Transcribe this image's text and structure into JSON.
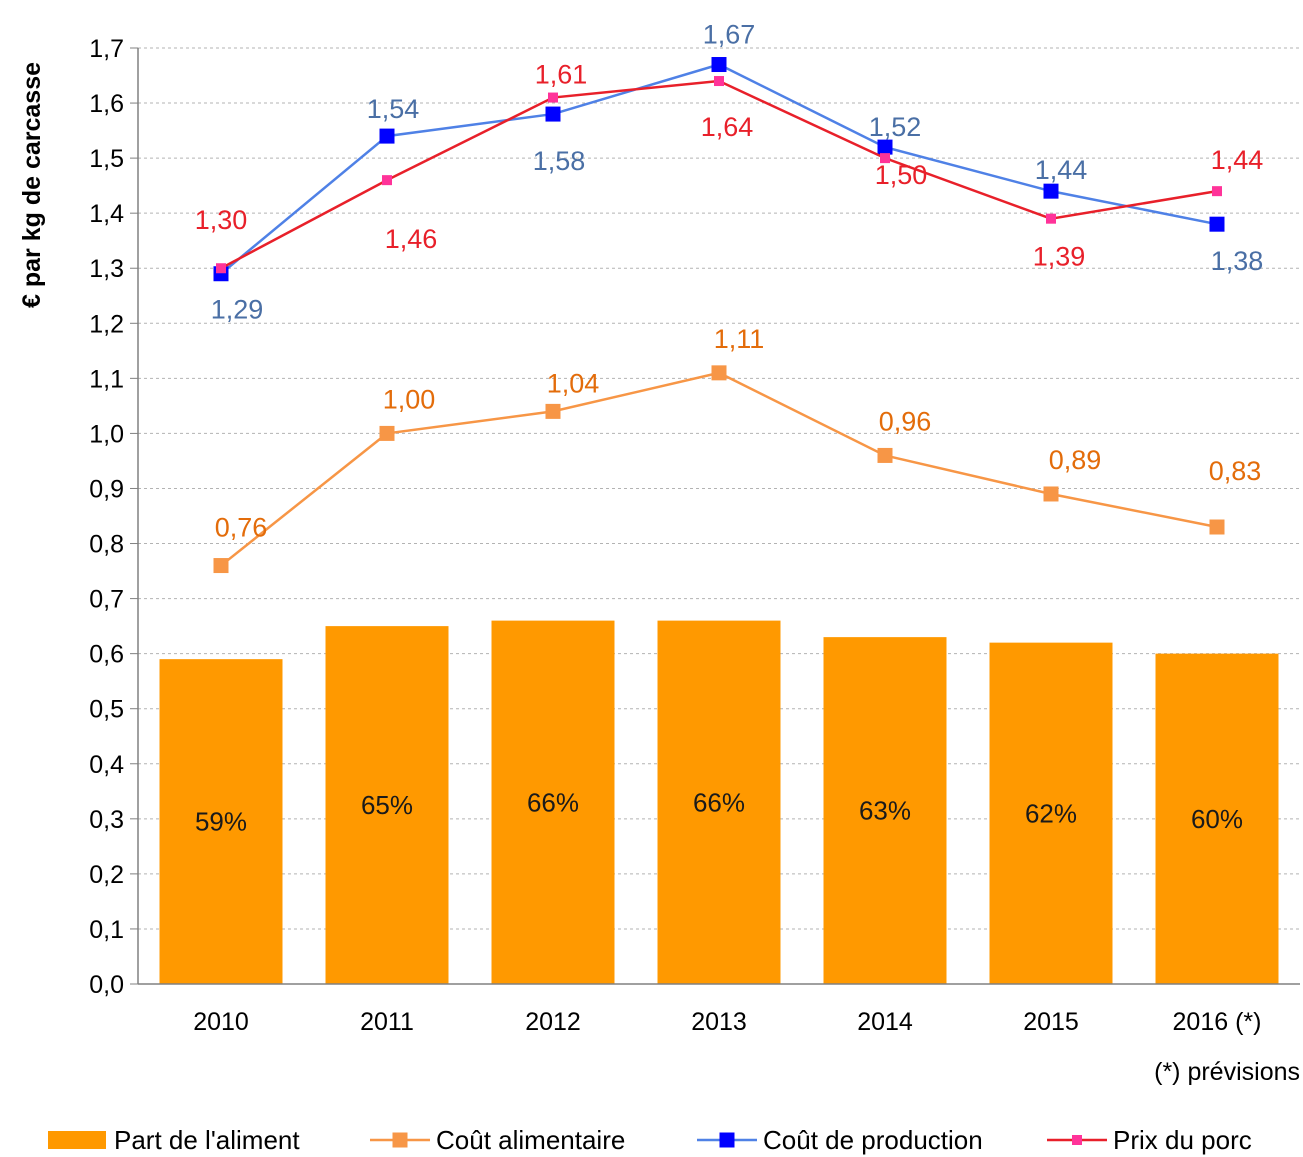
{
  "chart_data": {
    "type": "bar",
    "ylabel": "€ par kg de carcasse",
    "ylim": [
      0,
      1.7
    ],
    "ytick_step": 0.1,
    "grid": "horizontal dashed",
    "legend_position": "bottom",
    "categories": [
      "2010",
      "2011",
      "2012",
      "2013",
      "2014",
      "2015",
      "2016 (*)"
    ],
    "footnote": "(*) prévisions",
    "series": [
      {
        "name": "Part de l'aliment",
        "kind": "bar",
        "color": "#ff9900",
        "values": [
          0.59,
          0.65,
          0.66,
          0.66,
          0.63,
          0.62,
          0.6
        ],
        "labels": [
          "59%",
          "65%",
          "66%",
          "66%",
          "63%",
          "62%",
          "60%"
        ]
      },
      {
        "name": "Coût alimentaire",
        "kind": "line",
        "color": "#f79646",
        "label_color": "#e36c0a",
        "values": [
          0.76,
          1.0,
          1.04,
          1.11,
          0.96,
          0.89,
          0.83
        ],
        "labels": [
          "0,76",
          "1,00",
          "1,04",
          "1,11",
          "0,96",
          "0,89",
          "0,83"
        ]
      },
      {
        "name": "Coût de production",
        "kind": "line",
        "color": "#0000ff",
        "line_color": "#4f81e6",
        "label_color": "#4a6fa5",
        "values": [
          1.29,
          1.54,
          1.58,
          1.67,
          1.52,
          1.44,
          1.38
        ],
        "labels": [
          "1,29",
          "1,54",
          "1,58",
          "1,67",
          "1,52",
          "1,44",
          "1,38"
        ]
      },
      {
        "name": "Prix du porc",
        "kind": "line",
        "color": "#ff3399",
        "line_color": "#e8202a",
        "label_color": "#e8202a",
        "values": [
          1.3,
          1.46,
          1.61,
          1.64,
          1.5,
          1.39,
          1.44
        ],
        "labels": [
          "1,30",
          "1,46",
          "1,61",
          "1,64",
          "1,50",
          "1,39",
          "1,44"
        ]
      }
    ]
  }
}
